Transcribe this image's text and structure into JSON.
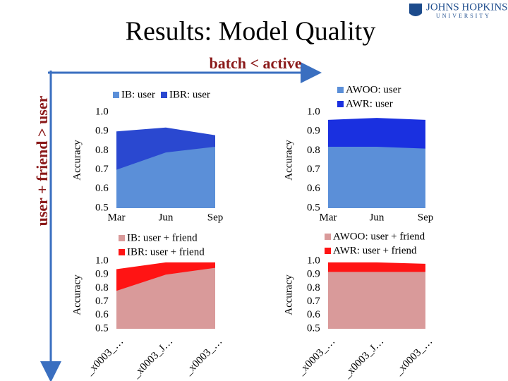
{
  "slide": {
    "title": "Results: Model Quality",
    "x_arrow_label": "batch < active",
    "y_arrow_label": "user + friend > user",
    "logo": [
      "JOHNS HOPKINS",
      "UNIVERSITY"
    ]
  },
  "chart_data": [
    {
      "type": "area",
      "ylabel": "Accuracy",
      "categories": [
        "Mar",
        "Jun",
        "Sep"
      ],
      "series": [
        {
          "name": "IB: user",
          "color": "#5b8fd8",
          "values": [
            0.7,
            0.79,
            0.82
          ]
        },
        {
          "name": "IBR: user",
          "color": "#2a48d0",
          "values": [
            0.9,
            0.92,
            0.88
          ]
        }
      ],
      "ylim": [
        0.5,
        1.0
      ],
      "yticks": [
        {
          "value": 1.0,
          "label": "1.0"
        },
        0.9,
        0.8,
        0.7,
        0.6,
        0.5
      ]
    },
    {
      "type": "area",
      "ylabel": "Accuracy",
      "categories": [
        "Mar",
        "Jun",
        "Sep"
      ],
      "series": [
        {
          "name": "AWOO: user",
          "color": "#5b8fd8",
          "values": [
            0.82,
            0.82,
            0.81
          ]
        },
        {
          "name": "AWR: user",
          "color": "#1a30e0",
          "values": [
            0.96,
            0.97,
            0.96
          ]
        }
      ],
      "ylim": [
        0.5,
        1.0
      ],
      "yticks": [
        {
          "value": 1.0,
          "label": "1.0"
        },
        0.9,
        0.8,
        0.7,
        0.6,
        0.5
      ]
    },
    {
      "type": "area",
      "ylabel": "Accuracy",
      "categories": [
        "_x0003_…",
        "_x0003_J…",
        "_x0003_…"
      ],
      "series": [
        {
          "name": "IB: user + friend",
          "color": "#d99a9a",
          "values": [
            0.78,
            0.9,
            0.95
          ]
        },
        {
          "name": "IBR: user + friend",
          "color": "#ff1414",
          "values": [
            0.94,
            0.99,
            0.99
          ]
        }
      ],
      "ylim": [
        0.5,
        1.0
      ],
      "yticks": [
        {
          "value": 1.0,
          "label": "1.0"
        },
        0.9,
        0.8,
        0.7,
        0.6,
        0.5
      ]
    },
    {
      "type": "area",
      "ylabel": "Accuracy",
      "categories": [
        "_x0003_…",
        "_x0003_J…",
        "_x0003_…"
      ],
      "series": [
        {
          "name": "AWOO: user + friend",
          "color": "#d99a9a",
          "values": [
            0.92,
            0.92,
            0.92
          ]
        },
        {
          "name": "AWR: user + friend",
          "color": "#ff1414",
          "values": [
            0.99,
            0.99,
            0.98
          ]
        }
      ],
      "ylim": [
        0.5,
        1.0
      ],
      "yticks": [
        {
          "value": 1.0,
          "label": "1.0"
        },
        0.9,
        0.8,
        0.7,
        0.6,
        0.5
      ]
    }
  ]
}
